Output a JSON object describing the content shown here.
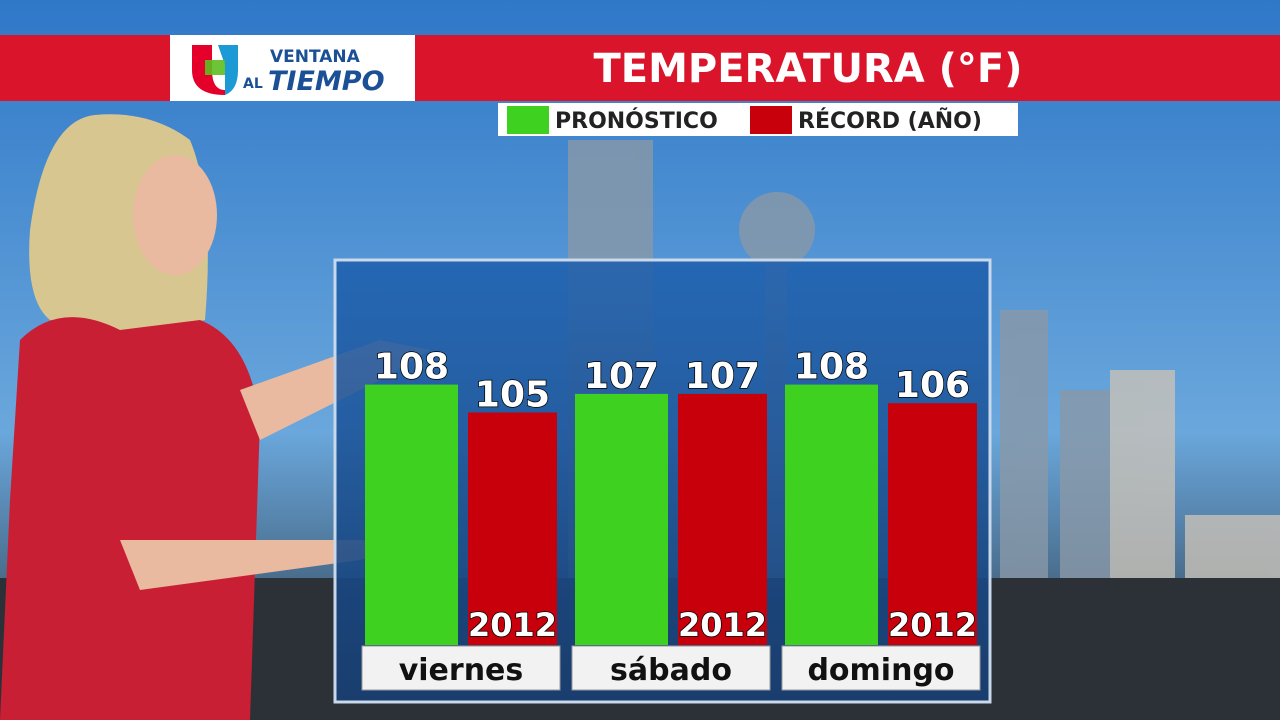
{
  "logo": {
    "line1": "VENTANA",
    "line2": "AL",
    "line3": "TIEMPO"
  },
  "chart_data": {
    "type": "bar",
    "title": "TEMPERATURA (°F)",
    "categories": [
      "viernes",
      "sábado",
      "domingo"
    ],
    "series": [
      {
        "name": "PRONÓSTICO",
        "color": "#3fd11f",
        "values": [
          108,
          107,
          108
        ]
      },
      {
        "name": "RÉCORD (AÑO)",
        "color": "#c8000c",
        "values": [
          105,
          107,
          106
        ],
        "years": [
          "2012",
          "2012",
          "2012"
        ]
      }
    ],
    "ylim": [
      80,
      110
    ]
  }
}
